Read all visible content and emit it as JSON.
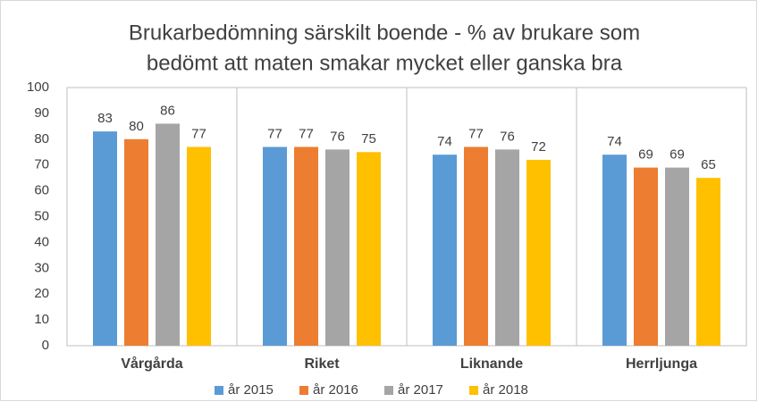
{
  "chart_data": {
    "type": "bar",
    "title": [
      "Brukarbedömning särskilt boende  - % av brukare som",
      "bedömt att maten smakar mycket eller ganska bra"
    ],
    "categories": [
      "Vårgårda",
      "Riket",
      "Liknande",
      "Herrljunga"
    ],
    "series": [
      {
        "name": "år 2015",
        "color": "#5b9bd5",
        "values": [
          83,
          77,
          74,
          74
        ]
      },
      {
        "name": "år 2016",
        "color": "#ed7d31",
        "values": [
          80,
          77,
          77,
          69
        ]
      },
      {
        "name": "år 2017",
        "color": "#a5a5a5",
        "values": [
          86,
          76,
          76,
          69
        ]
      },
      {
        "name": "år 2018",
        "color": "#ffc000",
        "values": [
          77,
          75,
          72,
          65
        ]
      }
    ],
    "ylim": [
      0,
      100
    ],
    "yticks": [
      0,
      10,
      20,
      30,
      40,
      50,
      60,
      70,
      80,
      90,
      100
    ],
    "grid": false,
    "legend": "bottom"
  }
}
